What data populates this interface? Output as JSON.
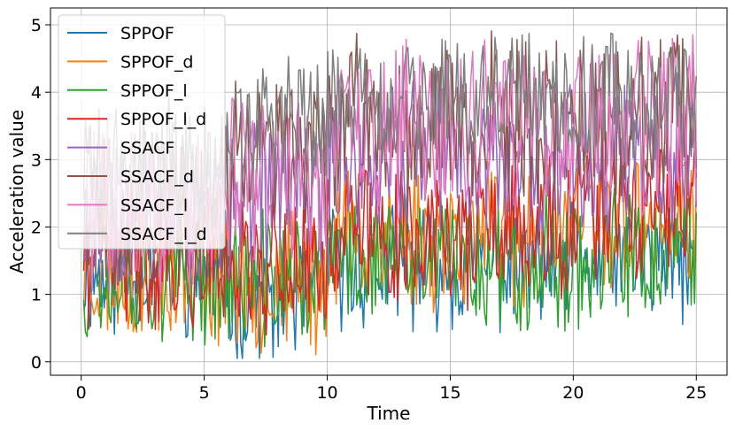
{
  "chart_data": {
    "type": "line",
    "title": "",
    "xlabel": "Time",
    "ylabel": "Acceleration value",
    "xlim": [
      -1.25,
      26.25
    ],
    "ylim": [
      -0.2,
      5.25
    ],
    "xticks": [
      0,
      5,
      10,
      15,
      20,
      25
    ],
    "yticks": [
      0,
      1,
      2,
      3,
      4,
      5
    ],
    "grid": true,
    "legend_position": "top-left",
    "n_points": 360,
    "x_range": [
      0.1,
      25.0
    ],
    "series": [
      {
        "name": "SPPOF",
        "color": "#1f77b4",
        "segments": [
          [
            0,
            6,
            1.3
          ],
          [
            6,
            10,
            0.9
          ],
          [
            10,
            20,
            1.4
          ],
          [
            20,
            25,
            1.5
          ]
        ],
        "amplitude": 0.8,
        "seed": 11
      },
      {
        "name": "SPPOF_d",
        "color": "#ff7f0e",
        "segments": [
          [
            0,
            6,
            1.4
          ],
          [
            6,
            10,
            1.2
          ],
          [
            10,
            20,
            1.9
          ],
          [
            20,
            25,
            2.1
          ]
        ],
        "amplitude": 1.0,
        "seed": 23
      },
      {
        "name": "SPPOF_l",
        "color": "#2ca02c",
        "segments": [
          [
            0,
            6,
            1.3
          ],
          [
            6,
            10,
            1.2
          ],
          [
            10,
            20,
            1.5
          ],
          [
            20,
            25,
            1.5
          ]
        ],
        "amplitude": 0.9,
        "seed": 37
      },
      {
        "name": "SPPOF_l_d",
        "color": "#d62728",
        "segments": [
          [
            0,
            6,
            1.6
          ],
          [
            6,
            10,
            1.5
          ],
          [
            10,
            20,
            1.9
          ],
          [
            20,
            25,
            2.2
          ]
        ],
        "amplitude": 1.0,
        "seed": 41
      },
      {
        "name": "SSACF",
        "color": "#9467bd",
        "segments": [
          [
            0,
            6,
            2.3
          ],
          [
            6,
            10,
            2.6
          ],
          [
            10,
            20,
            3.1
          ],
          [
            20,
            25,
            3.1
          ]
        ],
        "amplitude": 1.1,
        "seed": 53
      },
      {
        "name": "SSACF_d",
        "color": "#8c564b",
        "segments": [
          [
            0,
            6,
            2.3
          ],
          [
            6,
            10,
            3.1
          ],
          [
            10,
            20,
            3.6
          ],
          [
            20,
            25,
            3.6
          ]
        ],
        "amplitude": 1.1,
        "seed": 67
      },
      {
        "name": "SSACF_l",
        "color": "#e377c2",
        "segments": [
          [
            0,
            6,
            2.3
          ],
          [
            6,
            10,
            2.8
          ],
          [
            10,
            20,
            3.4
          ],
          [
            20,
            25,
            3.5
          ]
        ],
        "amplitude": 1.2,
        "seed": 71
      },
      {
        "name": "SSACF_l_d",
        "color": "#7f7f7f",
        "segments": [
          [
            0,
            6,
            2.9
          ],
          [
            6,
            10,
            3.6
          ],
          [
            10,
            20,
            3.9
          ],
          [
            20,
            25,
            3.9
          ]
        ],
        "amplitude": 0.9,
        "seed": 89
      }
    ]
  }
}
